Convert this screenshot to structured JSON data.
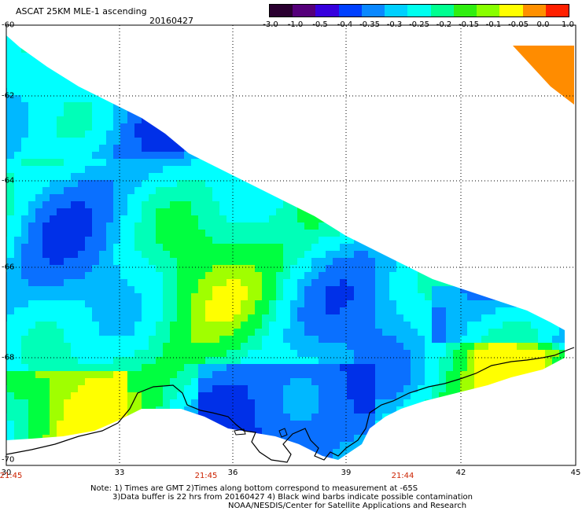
{
  "header": {
    "title": "ASCAT 25KM MLE-1 ascending",
    "date": "20160427"
  },
  "colorbar": {
    "tick_labels": [
      "-3.0",
      "-1.0",
      "-0.5",
      "-0.4",
      "-0.35",
      "-0.3",
      "-0.25",
      "-0.2",
      "-0.15",
      "-0.1",
      "-0.05",
      "0.0",
      "1.0"
    ],
    "colors": [
      "#2a0030",
      "#55007a",
      "#3600dd",
      "#0040ff",
      "#0a88ff",
      "#00d0ff",
      "#00ffee",
      "#00ff90",
      "#30ee10",
      "#88ff00",
      "#ffff00",
      "#ff9000",
      "#ff2000"
    ]
  },
  "axes": {
    "lat_labels": [
      "-60",
      "-62",
      "-64",
      "-66",
      "-68",
      "-70"
    ],
    "lon_labels": [
      "30",
      "33",
      "36",
      "39",
      "42",
      "45"
    ],
    "time_labels": [
      "21:45",
      "21:45",
      "21:44"
    ],
    "lat_range": [
      -70,
      -60
    ],
    "lon_range": [
      30,
      45
    ]
  },
  "notes": {
    "line1": "Note: 1) Times are GMT 2)Times along bottom correspond to measurement at -65S",
    "line2": "3)Data buffer is 22 hrs from 20160427 4) Black wind barbs indicate possible contamination",
    "line3": "NOAA/NESDIS/Center for Satellite Applications and Research"
  },
  "data_colors": {
    "dark_blue": "#0030e8",
    "blue": "#0a70ff",
    "light_blue": "#00b8ff",
    "cyan": "#00ffff",
    "aqua": "#00ffb8",
    "green": "#00ff40",
    "yellow_green": "#a0ff00",
    "yellow": "#ffff00",
    "orange": "#ff8c00",
    "coast": "#000000",
    "grid": "#000000"
  }
}
